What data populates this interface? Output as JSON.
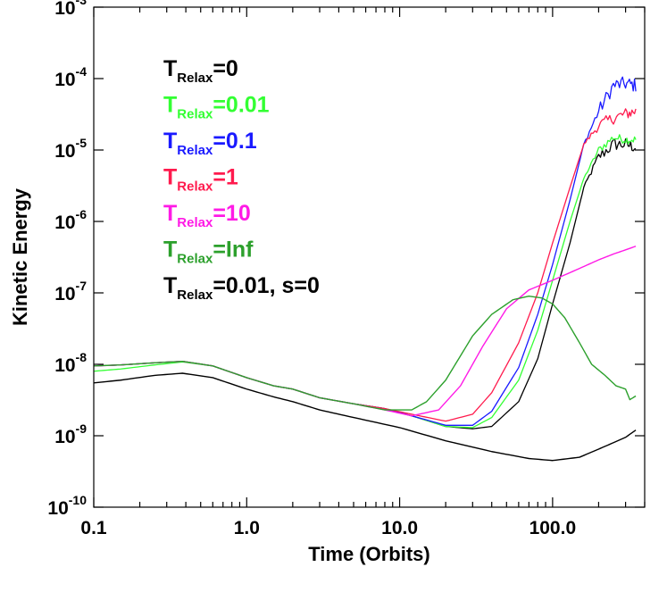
{
  "chart_data": {
    "type": "line",
    "title": "",
    "xlabel": "Time (Orbits)",
    "ylabel": "Kinetic Energy",
    "xscale": "log",
    "yscale": "log",
    "xlim": [
      0.1,
      400
    ],
    "ylim": [
      1e-10,
      0.001
    ],
    "x_ticks": [
      {
        "value": 0.1,
        "label": "0.1"
      },
      {
        "value": 1,
        "label": "1.0"
      },
      {
        "value": 10,
        "label": "10.0"
      },
      {
        "value": 100,
        "label": "100.0"
      }
    ],
    "y_ticks": [
      {
        "value": 1e-10,
        "base": "10",
        "exp": "-10"
      },
      {
        "value": 1e-09,
        "base": "10",
        "exp": "-9"
      },
      {
        "value": 1e-08,
        "base": "10",
        "exp": "-8"
      },
      {
        "value": 1e-07,
        "base": "10",
        "exp": "-7"
      },
      {
        "value": 1e-06,
        "base": "10",
        "exp": "-6"
      },
      {
        "value": 1e-05,
        "base": "10",
        "exp": "-5"
      },
      {
        "value": 0.0001,
        "base": "10",
        "exp": "-4"
      },
      {
        "value": 0.001,
        "base": "10",
        "exp": "-3"
      }
    ],
    "legend_position": "top-left",
    "series": [
      {
        "name": "T_Relax=0",
        "label_main": "T",
        "label_sub": "Relax",
        "label_rest": "=0",
        "color": "#000000",
        "noise": 0.18,
        "x": [
          0.1,
          0.15,
          0.25,
          0.38,
          0.6,
          1.0,
          1.5,
          2.0,
          3.0,
          5.0,
          8.0,
          12.0,
          20.0,
          30.0,
          40.0,
          60.0,
          80.0,
          100.0,
          130.0,
          160.0,
          200.0,
          250.0,
          300.0,
          350.0
        ],
        "y": [
          9.5e-09,
          9.8e-09,
          1.05e-08,
          1.1e-08,
          9.5e-09,
          6.5e-09,
          5e-09,
          4.5e-09,
          3.4e-09,
          2.8e-09,
          2.4e-09,
          1.9e-09,
          1.35e-09,
          1.25e-09,
          1.35e-09,
          3e-09,
          1.2e-08,
          7e-08,
          5e-07,
          3e-06,
          8e-06,
          1.2e-05,
          1.2e-05,
          1.1e-05
        ]
      },
      {
        "name": "T_Relax=0.01",
        "label_main": "T",
        "label_sub": "Relax",
        "label_rest": "=0.01",
        "color": "#33ff33",
        "noise": 0.12,
        "x": [
          0.1,
          0.15,
          0.25,
          0.38,
          0.6,
          1.0,
          1.5,
          2.0,
          3.0,
          5.0,
          8.0,
          12.0,
          20.0,
          30.0,
          40.0,
          60.0,
          80.0,
          100.0,
          130.0,
          160.0,
          200.0,
          250.0,
          300.0,
          350.0
        ],
        "y": [
          8e-09,
          8.6e-09,
          9.8e-09,
          1.08e-08,
          9.5e-09,
          6.5e-09,
          5e-09,
          4.5e-09,
          3.4e-09,
          2.8e-09,
          2.4e-09,
          1.9e-09,
          1.35e-09,
          1.3e-09,
          1.8e-09,
          6e-09,
          3e-08,
          1.5e-07,
          1e-06,
          4e-06,
          1e-05,
          1.5e-05,
          1.4e-05,
          1.4e-05
        ]
      },
      {
        "name": "T_Relax=0.1",
        "label_main": "T",
        "label_sub": "Relax",
        "label_rest": "=0.1",
        "color": "#1a1aff",
        "noise": 0.2,
        "x": [
          0.1,
          0.15,
          0.25,
          0.38,
          0.6,
          1.0,
          1.5,
          2.0,
          3.0,
          5.0,
          8.0,
          12.0,
          20.0,
          30.0,
          40.0,
          60.0,
          80.0,
          100.0,
          130.0,
          160.0,
          200.0,
          250.0,
          300.0,
          350.0
        ],
        "y": [
          9.5e-09,
          9.8e-09,
          1.05e-08,
          1.1e-08,
          9.5e-09,
          6.5e-09,
          5e-09,
          4.5e-09,
          3.4e-09,
          2.8e-09,
          2.4e-09,
          1.9e-09,
          1.4e-09,
          1.4e-09,
          2.2e-09,
          9e-09,
          5e-08,
          2.5e-07,
          2e-06,
          1.2e-05,
          3.5e-05,
          8e-05,
          8.5e-05,
          8e-05
        ]
      },
      {
        "name": "T_Relax=1",
        "label_main": "T",
        "label_sub": "Relax",
        "label_rest": "=1",
        "color": "#ff1a4d",
        "noise": 0.17,
        "x": [
          0.1,
          0.15,
          0.25,
          0.38,
          0.6,
          1.0,
          1.5,
          2.0,
          3.0,
          5.0,
          8.0,
          12.0,
          20.0,
          30.0,
          40.0,
          60.0,
          80.0,
          100.0,
          130.0,
          160.0,
          200.0,
          250.0,
          300.0,
          350.0
        ],
        "y": [
          9.5e-09,
          9.8e-09,
          1.05e-08,
          1.1e-08,
          9.5e-09,
          6.5e-09,
          5e-09,
          4.5e-09,
          3.4e-09,
          2.8e-09,
          2.4e-09,
          2e-09,
          1.6e-09,
          2e-09,
          4e-09,
          2e-08,
          1e-07,
          5e-07,
          3e-06,
          1.2e-05,
          2.2e-05,
          2.8e-05,
          3.2e-05,
          3.5e-05
        ]
      },
      {
        "name": "T_Relax=10",
        "label_main": "T",
        "label_sub": "Relax",
        "label_rest": "=10",
        "color": "#ff1ae6",
        "noise": 0,
        "x": [
          0.1,
          0.15,
          0.25,
          0.38,
          0.6,
          1.0,
          1.5,
          2.0,
          3.0,
          5.0,
          8.0,
          12.0,
          18.0,
          25.0,
          35.0,
          50.0,
          70.0,
          100.0,
          150.0,
          200.0,
          250.0,
          300.0,
          350.0
        ],
        "y": [
          9.5e-09,
          9.8e-09,
          1.05e-08,
          1.1e-08,
          9.5e-09,
          6.5e-09,
          5e-09,
          4.5e-09,
          3.4e-09,
          2.8e-09,
          2.3e-09,
          1.9e-09,
          2.3e-09,
          5e-09,
          1.8e-08,
          6e-08,
          1.1e-07,
          1.5e-07,
          2.2e-07,
          2.9e-07,
          3.5e-07,
          4e-07,
          4.5e-07
        ]
      },
      {
        "name": "T_Relax=Inf",
        "label_main": "T",
        "label_sub": "Relax",
        "label_rest": "=Inf",
        "color": "#2ca02c",
        "noise": 0,
        "x": [
          0.1,
          0.15,
          0.25,
          0.38,
          0.6,
          1.0,
          1.5,
          2.0,
          3.0,
          5.0,
          8.0,
          12.0,
          15.0,
          20.0,
          30.0,
          40.0,
          55.0,
          70.0,
          85.0,
          100.0,
          120.0,
          150.0,
          180.0,
          220.0,
          260.0,
          300.0,
          320.0,
          350.0
        ],
        "y": [
          9.5e-09,
          9.8e-09,
          1.05e-08,
          1.1e-08,
          9.5e-09,
          6.5e-09,
          5e-09,
          4.5e-09,
          3.4e-09,
          2.8e-09,
          2.3e-09,
          2.3e-09,
          3e-09,
          6e-09,
          2.5e-08,
          5e-08,
          8e-08,
          9e-08,
          8.5e-08,
          7e-08,
          4.5e-08,
          2e-08,
          1e-08,
          7e-09,
          5e-09,
          4.5e-09,
          3.2e-09,
          3.6e-09
        ]
      },
      {
        "name": "T_Relax=0.01, s=0",
        "label_main": "T",
        "label_sub": "Relax",
        "label_rest": "=0.01, s=0",
        "color": "#000000",
        "noise": 0,
        "x": [
          0.1,
          0.15,
          0.25,
          0.38,
          0.6,
          1.0,
          1.5,
          2.0,
          3.0,
          5.0,
          10.0,
          20.0,
          40.0,
          70.0,
          100.0,
          150.0,
          200.0,
          250.0,
          300.0,
          350.0
        ],
        "y": [
          5.5e-09,
          6e-09,
          7e-09,
          7.5e-09,
          6.5e-09,
          4.5e-09,
          3.5e-09,
          3e-09,
          2.3e-09,
          1.8e-09,
          1.3e-09,
          8.5e-10,
          6e-10,
          4.8e-10,
          4.5e-10,
          5e-10,
          6.5e-10,
          8e-10,
          9.5e-10,
          1.2e-09
        ]
      }
    ]
  }
}
